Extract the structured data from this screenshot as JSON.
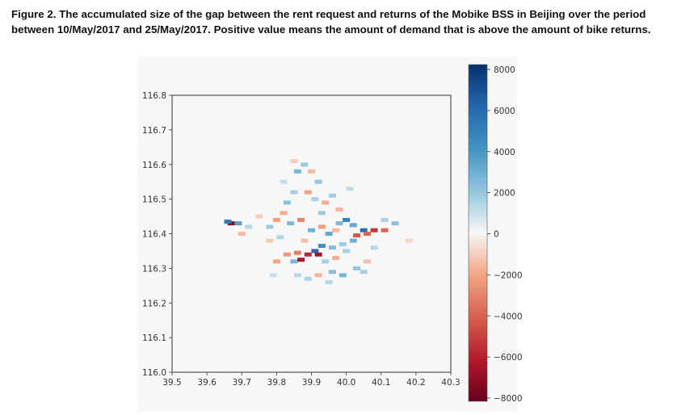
{
  "caption": "Figure 2. The accumulated size of the gap between the rent request and returns of the Mobike BSS in Beijing over the period between 10/May/2017 and 25/May/2017. Positive value means the amount of demand that is above the amount of bike returns.",
  "chart_data": {
    "type": "heatmap",
    "title": "",
    "xlabel": "",
    "ylabel": "",
    "xlim": [
      39.5,
      40.3
    ],
    "ylim": [
      116.0,
      116.8
    ],
    "x_ticks": [
      "39.5",
      "39.6",
      "39.7",
      "39.8",
      "39.9",
      "40.0",
      "40.1",
      "40.2",
      "40.3"
    ],
    "y_ticks": [
      "116.0",
      "116.1",
      "116.2",
      "116.3",
      "116.4",
      "116.5",
      "116.6",
      "116.7",
      "116.8"
    ],
    "colorbar": {
      "colormap": "RdBu",
      "vmin": -8000,
      "vmax": 8000,
      "ticks": [
        "8000",
        "6000",
        "4000",
        "2000",
        "0",
        "−2000",
        "−4000",
        "−6000",
        "−8000"
      ]
    },
    "grid": false,
    "cells": [
      {
        "x": 39.67,
        "y": 116.43,
        "value": -7200
      },
      {
        "x": 39.66,
        "y": 116.435,
        "value": 5200
      },
      {
        "x": 39.69,
        "y": 116.43,
        "value": 3500
      },
      {
        "x": 39.7,
        "y": 116.4,
        "value": -1500
      },
      {
        "x": 39.72,
        "y": 116.42,
        "value": 1200
      },
      {
        "x": 39.78,
        "y": 116.42,
        "value": 1800
      },
      {
        "x": 39.8,
        "y": 116.44,
        "value": -2200
      },
      {
        "x": 39.82,
        "y": 116.46,
        "value": -1800
      },
      {
        "x": 39.83,
        "y": 116.49,
        "value": 2200
      },
      {
        "x": 39.85,
        "y": 116.52,
        "value": 1600
      },
      {
        "x": 39.86,
        "y": 116.58,
        "value": 2600
      },
      {
        "x": 39.88,
        "y": 116.6,
        "value": 1800
      },
      {
        "x": 39.9,
        "y": 116.58,
        "value": -1500
      },
      {
        "x": 39.92,
        "y": 116.55,
        "value": 2000
      },
      {
        "x": 39.89,
        "y": 116.52,
        "value": -2000
      },
      {
        "x": 39.91,
        "y": 116.5,
        "value": 1500
      },
      {
        "x": 39.94,
        "y": 116.49,
        "value": -1800
      },
      {
        "x": 39.96,
        "y": 116.51,
        "value": 1700
      },
      {
        "x": 39.98,
        "y": 116.47,
        "value": -1500
      },
      {
        "x": 39.84,
        "y": 116.43,
        "value": 2500
      },
      {
        "x": 39.87,
        "y": 116.44,
        "value": -3000
      },
      {
        "x": 39.9,
        "y": 116.41,
        "value": 2800
      },
      {
        "x": 39.93,
        "y": 116.42,
        "value": -2200
      },
      {
        "x": 39.95,
        "y": 116.4,
        "value": 3200
      },
      {
        "x": 39.98,
        "y": 116.43,
        "value": 2600
      },
      {
        "x": 40.0,
        "y": 116.44,
        "value": 4800
      },
      {
        "x": 40.02,
        "y": 116.425,
        "value": 3200
      },
      {
        "x": 40.03,
        "y": 116.395,
        "value": -4200
      },
      {
        "x": 40.05,
        "y": 116.41,
        "value": 5600
      },
      {
        "x": 40.06,
        "y": 116.4,
        "value": -3800
      },
      {
        "x": 40.08,
        "y": 116.41,
        "value": -5200
      },
      {
        "x": 40.11,
        "y": 116.41,
        "value": -3800
      },
      {
        "x": 40.14,
        "y": 116.43,
        "value": 2200
      },
      {
        "x": 40.11,
        "y": 116.44,
        "value": 1500
      },
      {
        "x": 40.02,
        "y": 116.38,
        "value": 2800
      },
      {
        "x": 39.99,
        "y": 116.37,
        "value": 1800
      },
      {
        "x": 39.96,
        "y": 116.36,
        "value": 2400
      },
      {
        "x": 39.93,
        "y": 116.365,
        "value": 4200
      },
      {
        "x": 39.91,
        "y": 116.35,
        "value": 5800
      },
      {
        "x": 39.92,
        "y": 116.34,
        "value": -6400
      },
      {
        "x": 39.89,
        "y": 116.34,
        "value": -5600
      },
      {
        "x": 39.86,
        "y": 116.345,
        "value": -3200
      },
      {
        "x": 39.83,
        "y": 116.34,
        "value": -2400
      },
      {
        "x": 39.85,
        "y": 116.32,
        "value": 2600
      },
      {
        "x": 39.87,
        "y": 116.325,
        "value": -6200
      },
      {
        "x": 39.8,
        "y": 116.32,
        "value": -2000
      },
      {
        "x": 39.78,
        "y": 116.38,
        "value": -1200
      },
      {
        "x": 39.81,
        "y": 116.39,
        "value": 1400
      },
      {
        "x": 39.94,
        "y": 116.32,
        "value": 1600
      },
      {
        "x": 39.97,
        "y": 116.33,
        "value": -1800
      },
      {
        "x": 40.0,
        "y": 116.35,
        "value": 1500
      },
      {
        "x": 40.03,
        "y": 116.3,
        "value": 2000
      },
      {
        "x": 40.05,
        "y": 116.29,
        "value": 1500
      },
      {
        "x": 40.06,
        "y": 116.32,
        "value": -1400
      },
      {
        "x": 39.96,
        "y": 116.29,
        "value": 2200
      },
      {
        "x": 39.99,
        "y": 116.28,
        "value": 2600
      },
      {
        "x": 39.92,
        "y": 116.28,
        "value": -1600
      },
      {
        "x": 39.89,
        "y": 116.27,
        "value": 1400
      },
      {
        "x": 39.86,
        "y": 116.28,
        "value": 1200
      },
      {
        "x": 39.95,
        "y": 116.26,
        "value": 1300
      },
      {
        "x": 39.88,
        "y": 116.38,
        "value": -1400
      },
      {
        "x": 39.97,
        "y": 116.41,
        "value": -1500
      },
      {
        "x": 39.75,
        "y": 116.45,
        "value": -1000
      },
      {
        "x": 39.93,
        "y": 116.46,
        "value": 1800
      },
      {
        "x": 39.85,
        "y": 116.61,
        "value": -1000
      },
      {
        "x": 39.82,
        "y": 116.55,
        "value": 1000
      },
      {
        "x": 40.08,
        "y": 116.36,
        "value": 1200
      },
      {
        "x": 40.18,
        "y": 116.38,
        "value": -800
      },
      {
        "x": 39.79,
        "y": 116.28,
        "value": 900
      },
      {
        "x": 40.01,
        "y": 116.53,
        "value": 1100
      }
    ]
  }
}
